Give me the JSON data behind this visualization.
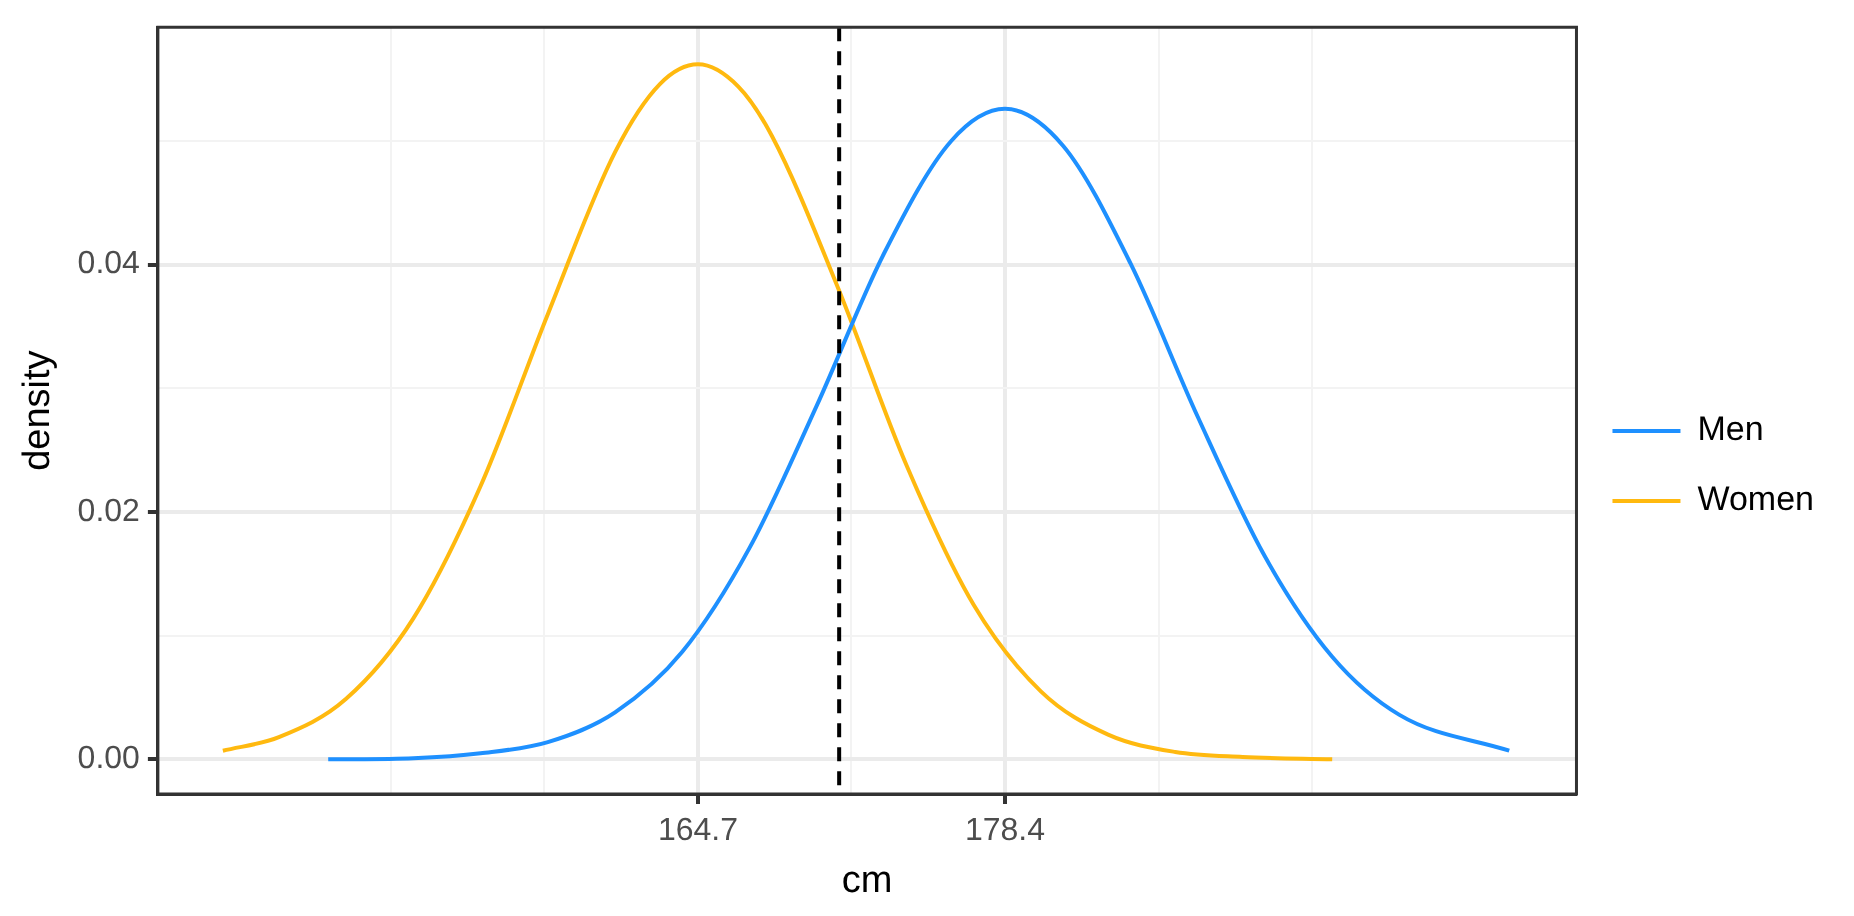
{
  "chart_data": {
    "type": "line",
    "xlabel": "cm",
    "ylabel": "density",
    "xlim": [
      140.6,
      203.9
    ],
    "xticks": [
      {
        "value": 151.0,
        "label": null
      },
      {
        "value": 157.85,
        "label": null
      },
      164.7,
      {
        "value": 171.55,
        "label": null
      },
      178.4,
      {
        "value": 185.25,
        "label": null
      },
      {
        "value": 192.1,
        "label": null
      }
    ],
    "ylim": [
      -0.0028,
      0.0592
    ],
    "yticks": [
      {
        "value": 0,
        "label": "0.00"
      },
      {
        "value": 0.01,
        "label": null
      },
      {
        "value": 0.02,
        "label": "0.02"
      },
      {
        "value": 0.03,
        "label": null
      },
      {
        "value": 0.04,
        "label": "0.04"
      },
      {
        "value": 0.05,
        "label": null
      }
    ],
    "grid": true,
    "legend": "right",
    "marker": "none",
    "line_style": "solid",
    "series": [
      {
        "name": "Men",
        "color": "#1e90ff",
        "x": [
          148.2,
          152,
          155,
          158,
          161,
          164,
          167,
          170,
          173,
          176,
          178.4,
          181,
          184,
          187,
          190,
          193,
          196,
          200.9
        ],
        "values": [
          0,
          0.0001,
          0.0005,
          0.0014,
          0.0038,
          0.0087,
          0.0171,
          0.0286,
          0.0409,
          0.05,
          0.0526,
          0.0496,
          0.0401,
          0.0277,
          0.0164,
          0.0083,
          0.0036,
          0.0007
        ]
      },
      {
        "name": "Women",
        "color": "#ffb90f",
        "x": [
          143.5,
          146,
          149,
          152,
          155,
          158,
          161,
          163,
          164.7,
          166.5,
          168,
          171,
          174,
          177,
          180,
          183,
          186,
          189,
          193
        ],
        "values": [
          0.0007,
          0.0018,
          0.0049,
          0.0114,
          0.0221,
          0.036,
          0.0491,
          0.0546,
          0.0562,
          0.0544,
          0.0504,
          0.0379,
          0.0238,
          0.0125,
          0.0055,
          0.002,
          0.0006,
          0.0002,
          0
        ]
      }
    ],
    "ref_lines": [
      {
        "axis": "x",
        "value": 171.0,
        "color": "#000000",
        "line_style": "dashed"
      }
    ]
  }
}
